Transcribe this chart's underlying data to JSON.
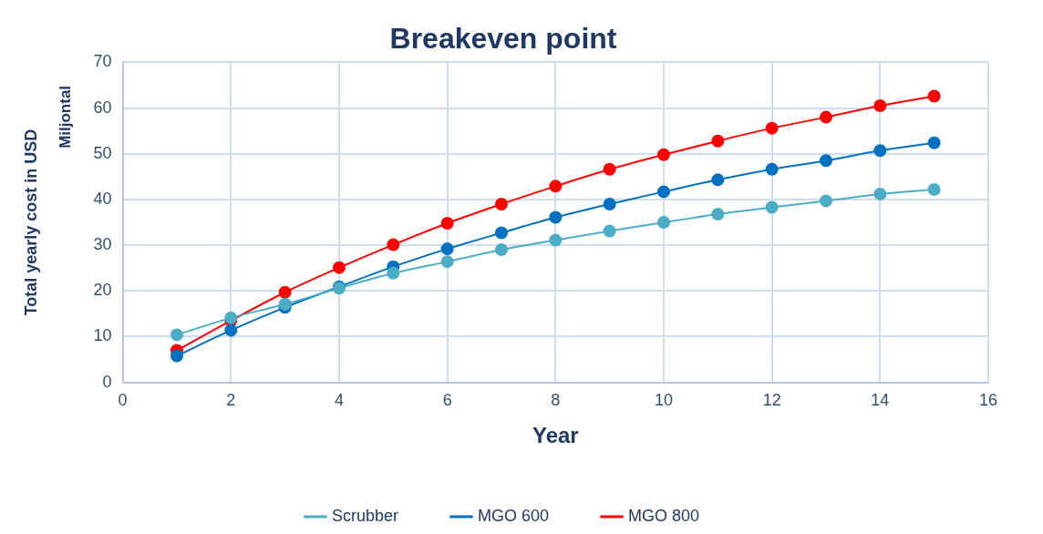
{
  "chart_data": {
    "type": "line",
    "title": "Breakeven point",
    "xlabel": "Year",
    "ylabel": "Total yearly cost in USD",
    "annotations": [
      "Miljontal"
    ],
    "x": [
      1,
      2,
      3,
      4,
      5,
      6,
      7,
      8,
      9,
      10,
      11,
      12,
      13,
      14,
      15
    ],
    "series": [
      {
        "name": "Scrubber",
        "color": "#4bacc6",
        "values": [
          10.4,
          14.1,
          17.1,
          20.6,
          23.9,
          26.4,
          29.0,
          31.1,
          33.1,
          35.0,
          36.8,
          38.3,
          39.7,
          41.2,
          42.2
        ]
      },
      {
        "name": "MGO 600",
        "color": "#0070c0",
        "values": [
          5.8,
          11.4,
          16.4,
          20.9,
          25.3,
          29.2,
          32.7,
          36.1,
          39.0,
          41.7,
          44.3,
          46.6,
          48.5,
          50.7,
          52.4
        ]
      },
      {
        "name": "MGO 800",
        "color": "#ff0000",
        "values": [
          7.0,
          13.5,
          19.7,
          25.1,
          30.1,
          34.8,
          39.0,
          42.9,
          46.6,
          49.8,
          52.8,
          55.6,
          58.0,
          60.5,
          62.6
        ]
      }
    ],
    "xlim": [
      0,
      16
    ],
    "xticks": [
      0,
      2,
      4,
      6,
      8,
      10,
      12,
      14,
      16
    ],
    "ylim": [
      0,
      70
    ],
    "yticks": [
      0,
      10,
      20,
      30,
      40,
      50,
      60,
      70
    ],
    "grid": true,
    "legend": "bottom",
    "marker": "circle",
    "line_style": "solid"
  }
}
